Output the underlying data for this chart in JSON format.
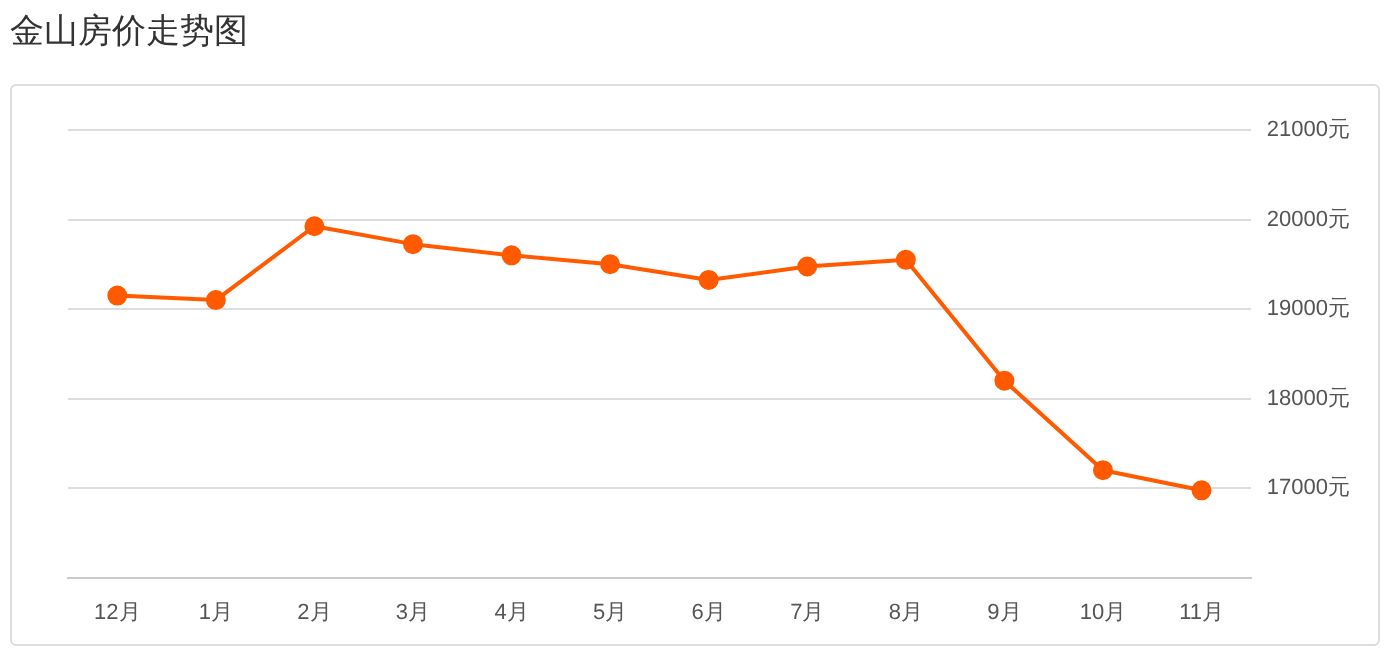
{
  "chart_data": {
    "type": "line",
    "title": "金山房价走势图",
    "categories": [
      "12月",
      "1月",
      "2月",
      "3月",
      "4月",
      "5月",
      "6月",
      "7月",
      "8月",
      "9月",
      "10月",
      "11月"
    ],
    "series": [
      {
        "color": "#ff5a00",
        "values": [
          19150,
          19100,
          19925,
          19725,
          19600,
          19500,
          19325,
          19475,
          19550,
          18200,
          17200,
          16975
        ]
      }
    ],
    "ylim": [
      16000,
      21000
    ],
    "yticks": [
      {
        "value": 17000,
        "label": "17000元"
      },
      {
        "value": 18000,
        "label": "18000元"
      },
      {
        "value": 19000,
        "label": "19000元"
      },
      {
        "value": 20000,
        "label": "20000元"
      },
      {
        "value": 21000,
        "label": "21000元"
      }
    ],
    "grid": "y",
    "legend": false,
    "marker": "circle",
    "line_style": "solid"
  }
}
